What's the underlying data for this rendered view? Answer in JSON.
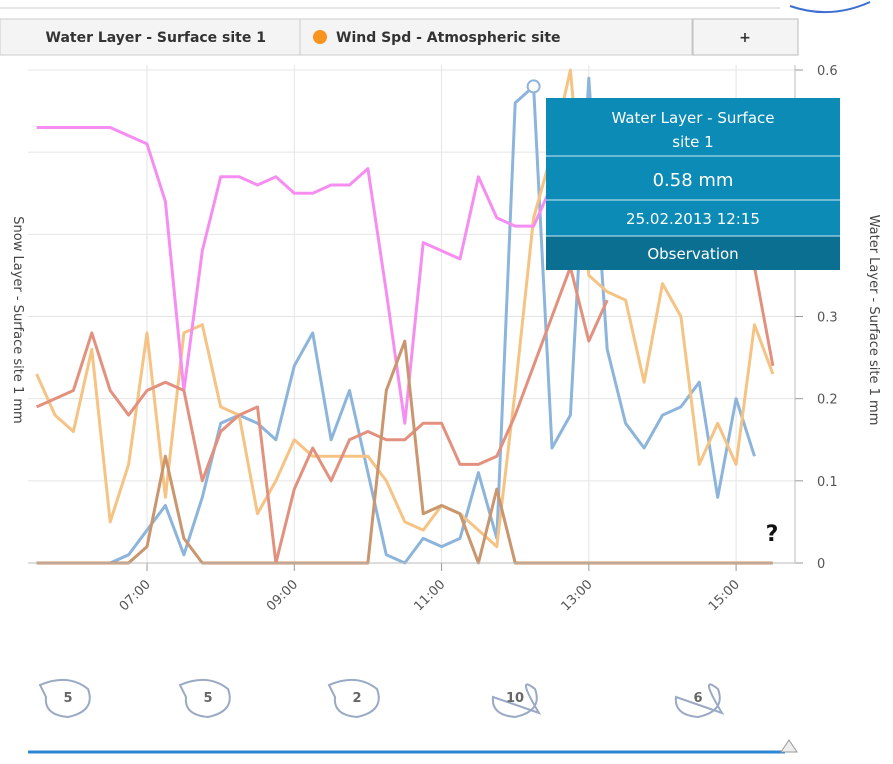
{
  "tabs": {
    "plus": "+"
  },
  "tooltip": {
    "title_line1": "Water Layer - Surface",
    "title_line2": "site 1",
    "value": "0.58 mm",
    "date": "25.02.2013 12:15",
    "kind": "Observation"
  },
  "help": "?",
  "nav_buttons": [
    5,
    5,
    2,
    10,
    6
  ],
  "chart_data": {
    "type": "line",
    "ylabel_left": "Snow Layer - Surface site 1 mm",
    "ylabel_right": "Water Layer - Surface site 1 mm",
    "x": [
      "05:30",
      "05:45",
      "06:00",
      "06:15",
      "06:30",
      "06:45",
      "07:00",
      "07:15",
      "07:30",
      "07:45",
      "08:00",
      "08:15",
      "08:30",
      "08:45",
      "09:00",
      "09:15",
      "09:30",
      "09:45",
      "10:00",
      "10:15",
      "10:30",
      "10:45",
      "11:00",
      "11:15",
      "11:30",
      "11:45",
      "12:00",
      "12:15",
      "12:30",
      "12:45",
      "13:00",
      "13:15",
      "13:30",
      "13:45",
      "14:00",
      "14:15",
      "14:30",
      "14:45",
      "15:00",
      "15:15",
      "15:30"
    ],
    "xlim": [
      "05:23",
      "15:48"
    ],
    "xticks": [
      "07:00",
      "09:00",
      "11:00",
      "13:00",
      "15:00"
    ],
    "ylim": [
      0,
      0.6
    ],
    "yticks": [
      0,
      0.1,
      0.2,
      0.3,
      0.4,
      0.5,
      0.6
    ],
    "grid": true,
    "series": [
      {
        "name": "Water Layer - Surface site 1",
        "color": "#8db5dc",
        "values": [
          0,
          0,
          0,
          0,
          0,
          0.01,
          0.04,
          0.07,
          0.01,
          0.08,
          0.17,
          0.18,
          0.17,
          0.15,
          0.24,
          0.28,
          0.15,
          0.21,
          0.11,
          0.01,
          0,
          0.03,
          0.02,
          0.03,
          0.11,
          0.03,
          0.56,
          0.58,
          0.14,
          0.18,
          0.59,
          0.26,
          0.17,
          0.14,
          0.18,
          0.19,
          0.22,
          0.08,
          0.2,
          0.13,
          null
        ]
      },
      {
        "name": "Wind Spd - Atmospheric site",
        "color": "#f5c384",
        "values": [
          0.23,
          0.18,
          0.16,
          0.26,
          0.05,
          0.12,
          0.28,
          0.08,
          0.28,
          0.29,
          0.19,
          0.18,
          0.06,
          0.1,
          0.15,
          0.13,
          0.13,
          0.13,
          0.13,
          0.1,
          0.05,
          0.04,
          0.07,
          0.06,
          0.04,
          0.02,
          0.21,
          0.42,
          0.5,
          0.6,
          0.35,
          0.33,
          0.32,
          0.22,
          0.34,
          0.3,
          0.12,
          0.17,
          0.12,
          0.29,
          0.23
        ]
      },
      {
        "color": "#f58ef0",
        "values": [
          0.53,
          0.53,
          0.53,
          0.53,
          0.53,
          0.52,
          0.51,
          0.44,
          0.21,
          0.38,
          0.47,
          0.47,
          0.46,
          0.47,
          0.45,
          0.45,
          0.46,
          0.46,
          0.48,
          0.33,
          0.17,
          0.39,
          0.38,
          0.37,
          0.47,
          0.42,
          0.41,
          0.41,
          0.46,
          null,
          null,
          null,
          null,
          null,
          null,
          null,
          null,
          null,
          null,
          null,
          null
        ]
      },
      {
        "color": "#e3917f",
        "values": [
          0.19,
          0.2,
          0.21,
          0.28,
          0.21,
          0.18,
          0.21,
          0.22,
          0.21,
          0.1,
          0.16,
          0.18,
          0.19,
          0,
          0.09,
          0.14,
          0.1,
          0.15,
          0.16,
          0.15,
          0.15,
          0.17,
          0.17,
          0.12,
          0.12,
          0.13,
          0.18,
          0.24,
          0.3,
          0.36,
          0.27,
          0.32,
          null,
          null,
          null,
          null,
          null,
          null,
          null,
          0.36,
          0.24
        ]
      },
      {
        "color": "#c9966e",
        "values": [
          0,
          0,
          0,
          0,
          0,
          0,
          0.02,
          0.13,
          0.03,
          0,
          0,
          0,
          0,
          0,
          0,
          0,
          0,
          0,
          0,
          0.21,
          0.27,
          0.06,
          0.07,
          0.06,
          0,
          0.09,
          0,
          0,
          0,
          0,
          0,
          0,
          0,
          0,
          0,
          0,
          0,
          0,
          0,
          0,
          0
        ]
      }
    ]
  }
}
